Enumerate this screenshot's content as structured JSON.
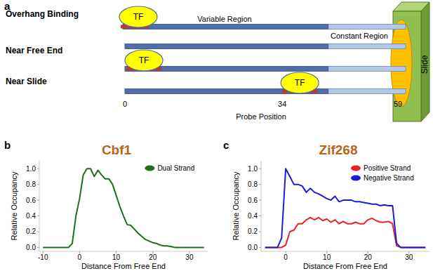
{
  "panel_labels": [
    "a",
    "b",
    "c"
  ],
  "diagram": {
    "rows": [
      {
        "label": "Overhang Binding"
      },
      {
        "label": "Near Free End"
      },
      {
        "label": "Near Slide"
      }
    ],
    "regions": [
      "Variable Region",
      "Constant Region"
    ],
    "tf_label": "TF",
    "slide_label": "Slide",
    "positions": [
      0,
      34,
      59
    ],
    "axis_label": "Probe Position"
  },
  "chart_data": [
    {
      "type": "line",
      "title": "Cbf1",
      "x_label": "Distance From Free End",
      "y_label": "Relative Occupancy",
      "x": [
        -10,
        -9,
        -8,
        -7,
        -6,
        -5,
        -4,
        -3,
        -2,
        -1,
        0,
        1,
        2,
        3,
        4,
        5,
        6,
        7,
        8,
        9,
        10,
        11,
        12,
        13,
        14,
        15,
        16,
        17,
        18,
        19,
        20,
        21,
        22,
        23,
        24,
        25,
        26,
        27,
        28,
        29,
        30,
        31,
        32,
        33,
        34
      ],
      "series": [
        {
          "name": "Dual Strand",
          "color": "#1e6e1e",
          "values": [
            0,
            0,
            0,
            0,
            0,
            0,
            0,
            0,
            0.05,
            0.4,
            0.62,
            0.92,
            1.0,
            1.0,
            0.9,
            0.98,
            0.92,
            0.87,
            0.87,
            0.8,
            0.66,
            0.52,
            0.4,
            0.29,
            0.28,
            0.23,
            0.18,
            0.14,
            0.1,
            0.08,
            0.06,
            0.05,
            0.03,
            0.02,
            0.02,
            0.01,
            0,
            0,
            0,
            0,
            0,
            0,
            0,
            0,
            0
          ]
        }
      ],
      "xlim": [
        -11,
        35
      ],
      "xticks": [
        -10,
        0,
        10,
        20,
        30
      ],
      "ylim": [
        -0.05,
        1.1
      ],
      "yticks": [
        {
          "value": 0,
          "label": "0.0"
        },
        {
          "value": 0.2,
          "label": "0.2"
        },
        {
          "value": 0.4,
          "label": "0.4"
        },
        {
          "value": 0.6,
          "label": "0.6"
        },
        {
          "value": 0.8,
          "label": "0.8"
        },
        {
          "value": 1.0,
          "label": "1.0"
        }
      ],
      "legend": "upper right",
      "grid": false
    },
    {
      "type": "line",
      "title": "Zif268",
      "x_label": "Distance From Free End",
      "y_label": "Relative Occupancy",
      "x": [
        -5,
        -4,
        -3,
        -2,
        -1,
        0,
        1,
        2,
        3,
        4,
        5,
        6,
        7,
        8,
        9,
        10,
        11,
        12,
        13,
        14,
        15,
        16,
        17,
        18,
        19,
        20,
        21,
        22,
        23,
        24,
        25,
        26,
        27,
        28,
        29,
        30,
        31,
        32,
        33,
        34
      ],
      "series": [
        {
          "name": "Positive Strand",
          "color": "#e8231e",
          "values": [
            0,
            0,
            0,
            0,
            0,
            0.03,
            0.2,
            0.22,
            0.3,
            0.3,
            0.35,
            0.38,
            0.35,
            0.38,
            0.34,
            0.36,
            0.32,
            0.35,
            0.3,
            0.33,
            0.3,
            0.3,
            0.32,
            0.3,
            0.3,
            0.35,
            0.37,
            0.34,
            0.32,
            0.32,
            0.33,
            0.3,
            0.02,
            0,
            0,
            0,
            0,
            0,
            0,
            0
          ]
        },
        {
          "name": "Negative Strand",
          "color": "#1c1cd6",
          "values": [
            0,
            0,
            0,
            0,
            0.12,
            1.0,
            0.9,
            0.8,
            0.8,
            0.78,
            0.7,
            0.75,
            0.7,
            0.68,
            0.65,
            0.62,
            0.6,
            0.65,
            0.58,
            0.6,
            0.6,
            0.6,
            0.58,
            0.58,
            0.57,
            0.56,
            0.55,
            0.55,
            0.53,
            0.54,
            0.53,
            0.53,
            0.05,
            0,
            0,
            0,
            0,
            0,
            0,
            0
          ]
        }
      ],
      "xlim": [
        -6,
        35
      ],
      "xticks": [
        0,
        10,
        20,
        30
      ],
      "ylim": [
        -0.05,
        1.1
      ],
      "yticks": [
        {
          "value": 0,
          "label": "0.0"
        },
        {
          "value": 0.2,
          "label": "0.2"
        },
        {
          "value": 0.4,
          "label": "0.4"
        },
        {
          "value": 0.6,
          "label": "0.6"
        },
        {
          "value": 0.8,
          "label": "0.8"
        },
        {
          "value": 1.0,
          "label": "1.0"
        }
      ],
      "legend": "upper right",
      "grid": false
    }
  ]
}
